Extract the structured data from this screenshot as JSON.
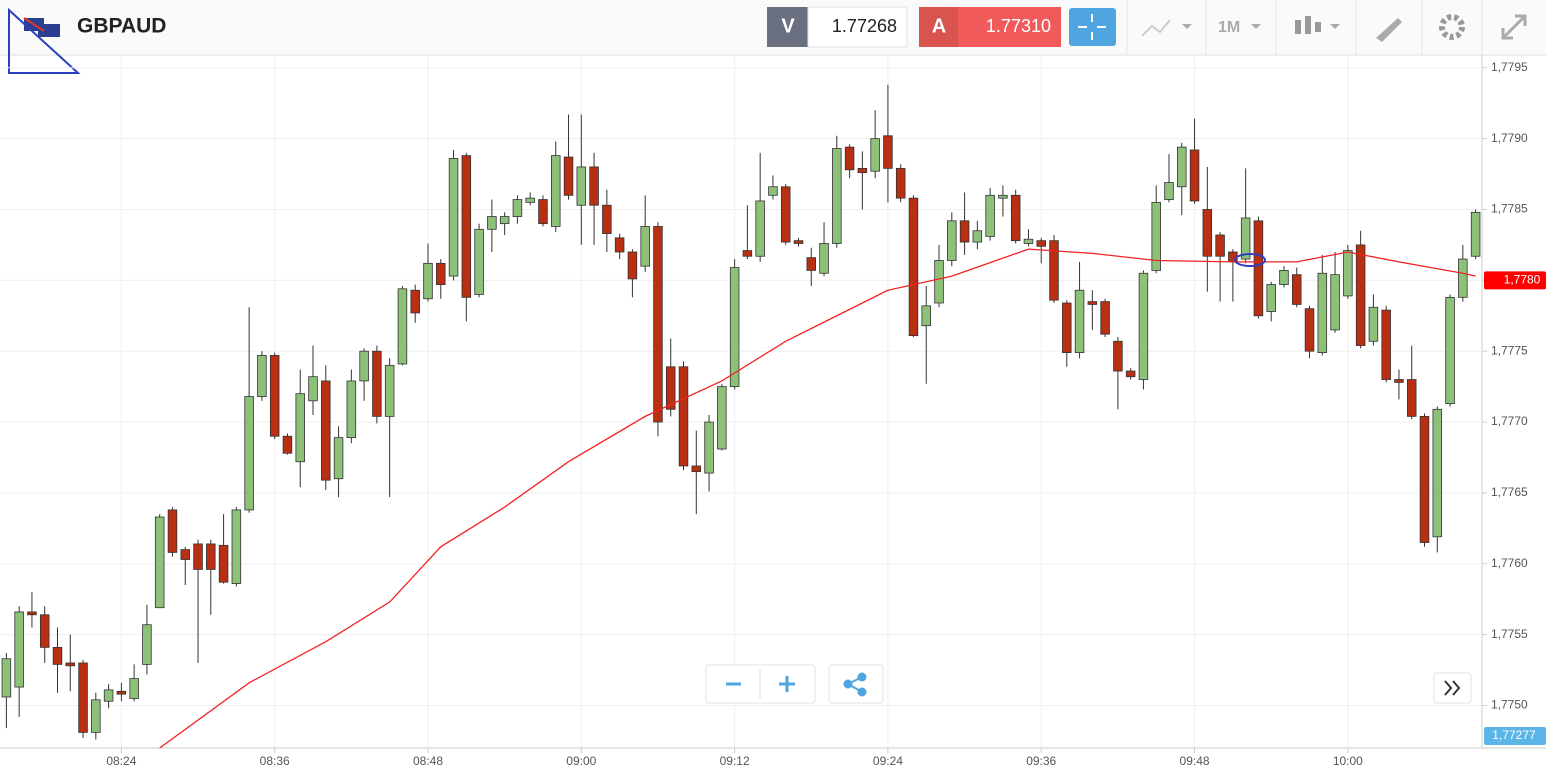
{
  "toolbar": {
    "symbol": "GBPAUD",
    "bid_tag": "V",
    "bid": "1.77268",
    "ask_tag": "A",
    "ask": "1.77310",
    "timeframe": "1M"
  },
  "chart_data": {
    "type": "candlestick",
    "categories": [
      "08:15",
      "08:16",
      "08:17",
      "08:18",
      "08:19",
      "08:20",
      "08:21",
      "08:22",
      "08:23",
      "08:24",
      "08:25",
      "08:26",
      "08:27",
      "08:28",
      "08:29",
      "08:30",
      "08:31",
      "08:32",
      "08:33",
      "08:34",
      "08:35",
      "08:36",
      "08:37",
      "08:38",
      "08:39",
      "08:40",
      "08:41",
      "08:42",
      "08:43",
      "08:44",
      "08:45",
      "08:46",
      "08:47",
      "08:48",
      "08:49",
      "08:50",
      "08:51",
      "08:52",
      "08:53",
      "08:54",
      "08:55",
      "08:56",
      "08:57",
      "08:58",
      "08:59",
      "09:00",
      "09:01",
      "09:02",
      "09:03",
      "09:04",
      "09:05",
      "09:06",
      "09:07",
      "09:08",
      "09:09",
      "09:10",
      "09:11",
      "09:12",
      "09:13",
      "09:14",
      "09:15",
      "09:16",
      "09:17",
      "09:18",
      "09:19",
      "09:20",
      "09:21",
      "09:22",
      "09:23",
      "09:24",
      "09:25",
      "09:26",
      "09:27",
      "09:28",
      "09:29",
      "09:30",
      "09:31",
      "09:32",
      "09:33",
      "09:34",
      "09:35",
      "09:36",
      "09:37",
      "09:38",
      "09:39",
      "09:40",
      "09:41",
      "09:42",
      "09:43",
      "09:44",
      "09:45",
      "09:46",
      "09:47",
      "09:48",
      "09:49",
      "09:50",
      "09:51",
      "09:52",
      "09:53",
      "09:54",
      "09:55",
      "09:56",
      "09:57",
      "09:58",
      "09:59",
      "10:00",
      "10:01",
      "10:02",
      "10:03",
      "10:04",
      "10:05",
      "10:06",
      "10:07",
      "10:08",
      "10:09",
      "10:10"
    ],
    "open": [
      1.77506,
      1.77513,
      1.77566,
      1.77564,
      1.77541,
      1.7753,
      1.7753,
      1.77481,
      1.77503,
      1.7751,
      1.77505,
      1.77529,
      1.77569,
      1.77638,
      1.7761,
      1.77614,
      1.77614,
      1.77613,
      1.77586,
      1.77638,
      1.77718,
      1.77747,
      1.7769,
      1.77672,
      1.77715,
      1.77729,
      1.7766,
      1.77689,
      1.77729,
      1.7775,
      1.77704,
      1.77741,
      1.77793,
      1.77787,
      1.77812,
      1.77803,
      1.77888,
      1.7779,
      1.77836,
      1.7784,
      1.77845,
      1.77855,
      1.77857,
      1.77838,
      1.77887,
      1.77853,
      1.7788,
      1.77853,
      1.7783,
      1.7782,
      1.7781,
      1.77838,
      1.77739,
      1.77739,
      1.77669,
      1.77664,
      1.77681,
      1.77725,
      1.77821,
      1.77817,
      1.7786,
      1.77866,
      1.77828,
      1.77816,
      1.77805,
      1.77826,
      1.77894,
      1.77879,
      1.77877,
      1.77902,
      1.77879,
      1.77858,
      1.77768,
      1.77784,
      1.77814,
      1.77842,
      1.77827,
      1.77831,
      1.77858,
      1.7786,
      1.77826,
      1.77828,
      1.77828,
      1.77784,
      1.77749,
      1.77785,
      1.77785,
      1.77757,
      1.77736,
      1.7773,
      1.77807,
      1.77857,
      1.77866,
      1.77892,
      1.7785,
      1.77832,
      1.7782,
      1.77815,
      1.77842,
      1.77778,
      1.77797,
      1.77804,
      1.7778,
      1.77749,
      1.77765,
      1.77789,
      1.77825,
      1.77757,
      1.77779,
      1.7773,
      1.7773,
      1.77704,
      1.77619,
      1.77713,
      1.77788,
      1.77817
    ],
    "high": [
      1.77537,
      1.7757,
      1.7758,
      1.7757,
      1.77555,
      1.7755,
      1.77532,
      1.77509,
      1.77515,
      1.77516,
      1.77529,
      1.77571,
      1.77635,
      1.7764,
      1.77612,
      1.77617,
      1.77617,
      1.77635,
      1.7764,
      1.77781,
      1.7775,
      1.77749,
      1.77692,
      1.77737,
      1.77754,
      1.7774,
      1.77697,
      1.77737,
      1.77752,
      1.77754,
      1.77745,
      1.77796,
      1.77797,
      1.77826,
      1.77815,
      1.77892,
      1.7789,
      1.7784,
      1.77857,
      1.77848,
      1.7786,
      1.77862,
      1.7786,
      1.77898,
      1.77917,
      1.77917,
      1.7789,
      1.77864,
      1.77833,
      1.77822,
      1.7786,
      1.77841,
      1.77759,
      1.77743,
      1.77694,
      1.77705,
      1.77727,
      1.77815,
      1.77853,
      1.7789,
      1.77874,
      1.77868,
      1.7783,
      1.77823,
      1.77841,
      1.77902,
      1.77896,
      1.77891,
      1.7792,
      1.77938,
      1.77882,
      1.7786,
      1.77796,
      1.77825,
      1.77848,
      1.77862,
      1.77842,
      1.77865,
      1.77867,
      1.77864,
      1.77836,
      1.7783,
      1.77832,
      1.77786,
      1.77813,
      1.77793,
      1.77787,
      1.7776,
      1.77738,
      1.77807,
      1.77867,
      1.77889,
      1.77897,
      1.77914,
      1.7788,
      1.77834,
      1.77822,
      1.77879,
      1.77845,
      1.77799,
      1.7781,
      1.77809,
      1.77782,
      1.77818,
      1.7782,
      1.77825,
      1.77835,
      1.7779,
      1.77782,
      1.77737,
      1.77754,
      1.77706,
      1.77711,
      1.7779,
      1.77825,
      1.7785
    ],
    "low": [
      1.77484,
      1.77492,
      1.77555,
      1.7753,
      1.77509,
      1.7751,
      1.77477,
      1.77476,
      1.77498,
      1.77503,
      1.77503,
      1.77522,
      1.77569,
      1.77605,
      1.77585,
      1.7753,
      1.77564,
      1.77586,
      1.77584,
      1.77636,
      1.77715,
      1.77688,
      1.77677,
      1.77654,
      1.77705,
      1.77652,
      1.77647,
      1.77685,
      1.77715,
      1.77699,
      1.77647,
      1.7774,
      1.7777,
      1.77785,
      1.77787,
      1.778,
      1.77771,
      1.77788,
      1.7782,
      1.77832,
      1.7784,
      1.77853,
      1.77838,
      1.77834,
      1.77857,
      1.77825,
      1.77825,
      1.7782,
      1.77815,
      1.77788,
      1.77806,
      1.7769,
      1.77704,
      1.77666,
      1.77635,
      1.77651,
      1.7768,
      1.77723,
      1.77815,
      1.77813,
      1.77857,
      1.77825,
      1.77824,
      1.77796,
      1.77803,
      1.77823,
      1.77872,
      1.7785,
      1.77872,
      1.77855,
      1.77855,
      1.7776,
      1.77727,
      1.77781,
      1.7781,
      1.77818,
      1.77822,
      1.77828,
      1.77845,
      1.77826,
      1.77824,
      1.77812,
      1.77784,
      1.77739,
      1.77745,
      1.77765,
      1.7776,
      1.77709,
      1.7773,
      1.77723,
      1.77805,
      1.77855,
      1.77846,
      1.77854,
      1.77792,
      1.77785,
      1.77785,
      1.77812,
      1.77773,
      1.77771,
      1.77795,
      1.77781,
      1.77745,
      1.77747,
      1.77763,
      1.77787,
      1.77752,
      1.77754,
      1.77728,
      1.77716,
      1.77702,
      1.77612,
      1.77608,
      1.77711,
      1.77785,
      1.77815
    ],
    "close": [
      1.77533,
      1.77566,
      1.77564,
      1.77541,
      1.77529,
      1.77528,
      1.77481,
      1.77504,
      1.77511,
      1.77508,
      1.77519,
      1.77557,
      1.77633,
      1.77608,
      1.77603,
      1.77596,
      1.77596,
      1.77587,
      1.77638,
      1.77718,
      1.77747,
      1.7769,
      1.77678,
      1.7772,
      1.77732,
      1.77659,
      1.77689,
      1.77729,
      1.7775,
      1.77704,
      1.7774,
      1.77794,
      1.77777,
      1.77812,
      1.77797,
      1.77886,
      1.77788,
      1.77836,
      1.77845,
      1.77845,
      1.77857,
      1.77858,
      1.7784,
      1.77888,
      1.7786,
      1.7788,
      1.77853,
      1.77833,
      1.7782,
      1.77801,
      1.77838,
      1.777,
      1.77709,
      1.77669,
      1.77665,
      1.777,
      1.77725,
      1.77809,
      1.77817,
      1.77856,
      1.77866,
      1.77827,
      1.77826,
      1.77807,
      1.77826,
      1.77893,
      1.77878,
      1.77876,
      1.779,
      1.77879,
      1.77858,
      1.77761,
      1.77782,
      1.77814,
      1.77842,
      1.77827,
      1.77835,
      1.7786,
      1.7786,
      1.77828,
      1.77829,
      1.77824,
      1.77786,
      1.77749,
      1.77793,
      1.77783,
      1.77762,
      1.77736,
      1.77732,
      1.77805,
      1.77855,
      1.77869,
      1.77894,
      1.77856,
      1.77817,
      1.77817,
      1.77813,
      1.77844,
      1.77775,
      1.77797,
      1.77807,
      1.77783,
      1.7775,
      1.77805,
      1.77804,
      1.77821,
      1.77754,
      1.77781,
      1.7773,
      1.77728,
      1.77704,
      1.77615,
      1.77709,
      1.77788,
      1.77815,
      1.77848
    ],
    "up_color": "#8dc17a",
    "down_color": "#b92f12",
    "moving_average": {
      "color": "#f22222",
      "x": [
        "08:27",
        "08:34",
        "08:40",
        "08:45",
        "08:49",
        "08:54",
        "08:59",
        "09:05",
        "09:11",
        "09:16",
        "09:20",
        "09:24",
        "09:29",
        "09:35",
        "09:40",
        "09:45",
        "09:51",
        "09:56",
        "10:00",
        "10:04",
        "10:09",
        "10:10"
      ],
      "values": [
        1.7747,
        1.77516,
        1.77545,
        1.77573,
        1.77612,
        1.7764,
        1.77672,
        1.77704,
        1.77729,
        1.77757,
        1.77775,
        1.77793,
        1.77803,
        1.77822,
        1.77819,
        1.77814,
        1.77813,
        1.77813,
        1.7782,
        1.77813,
        1.77805,
        1.77803
      ]
    },
    "ylim": [
      1.7747,
      1.77959
    ],
    "yticks": [
      {
        "value": 1.775,
        "label": "1,7750"
      },
      {
        "value": 1.7755,
        "label": "1,7755"
      },
      {
        "value": 1.776,
        "label": "1,7760"
      },
      {
        "value": 1.7765,
        "label": "1,7765"
      },
      {
        "value": 1.777,
        "label": "1,7770"
      },
      {
        "value": 1.7775,
        "label": "1,7775"
      },
      {
        "value": 1.778,
        "label": "1,7780"
      },
      {
        "value": 1.7785,
        "label": "1,7785"
      },
      {
        "value": 1.779,
        "label": "1,7790"
      },
      {
        "value": 1.7795,
        "label": "1,7795"
      }
    ],
    "xticks": [
      "08:24",
      "08:36",
      "08:48",
      "09:00",
      "09:12",
      "09:24",
      "09:36",
      "09:48",
      "10:00"
    ],
    "grid": true,
    "price_tag": {
      "value": 1.778,
      "label": "1,7780",
      "color": "#ff0000"
    },
    "bottom_tag": "1,77277"
  }
}
